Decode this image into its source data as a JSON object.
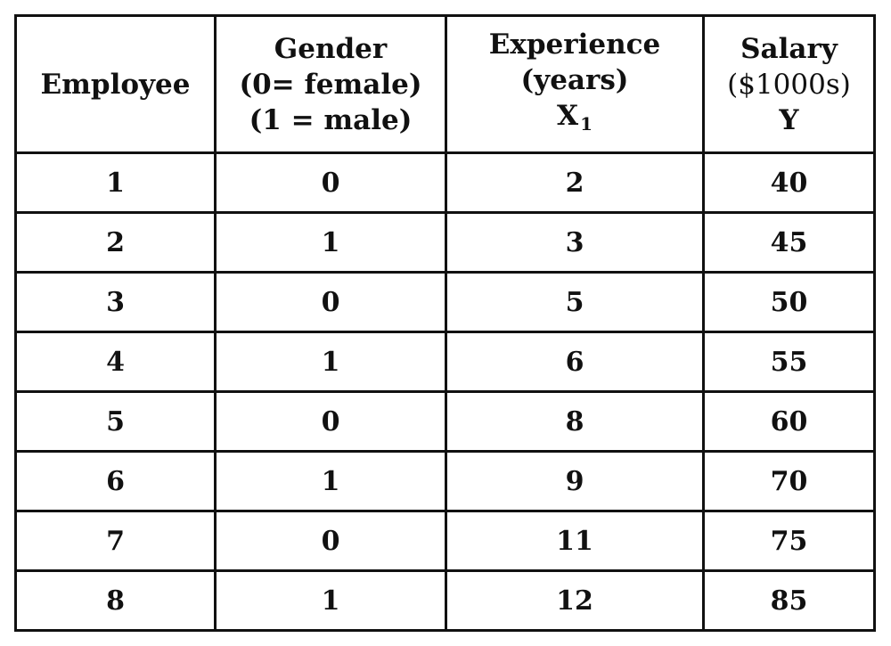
{
  "table": {
    "headers": [
      {
        "lines": [
          "Employee"
        ]
      },
      {
        "lines": [
          "Gender",
          "(0= female)",
          "(1 = male)"
        ]
      },
      {
        "lines": [
          "Experience",
          "(years)",
          "X"
        ],
        "subscript": "1"
      },
      {
        "lines": [
          "Salary",
          "($1000s)",
          "Y"
        ]
      }
    ],
    "rows": [
      [
        "1",
        "0",
        "2",
        "40"
      ],
      [
        "2",
        "1",
        "3",
        "45"
      ],
      [
        "3",
        "0",
        "5",
        "50"
      ],
      [
        "4",
        "1",
        "6",
        "55"
      ],
      [
        "5",
        "0",
        "8",
        "60"
      ],
      [
        "6",
        "1",
        "9",
        "70"
      ],
      [
        "7",
        "0",
        "11",
        "75"
      ],
      [
        "8",
        "1",
        "12",
        "85"
      ]
    ]
  }
}
